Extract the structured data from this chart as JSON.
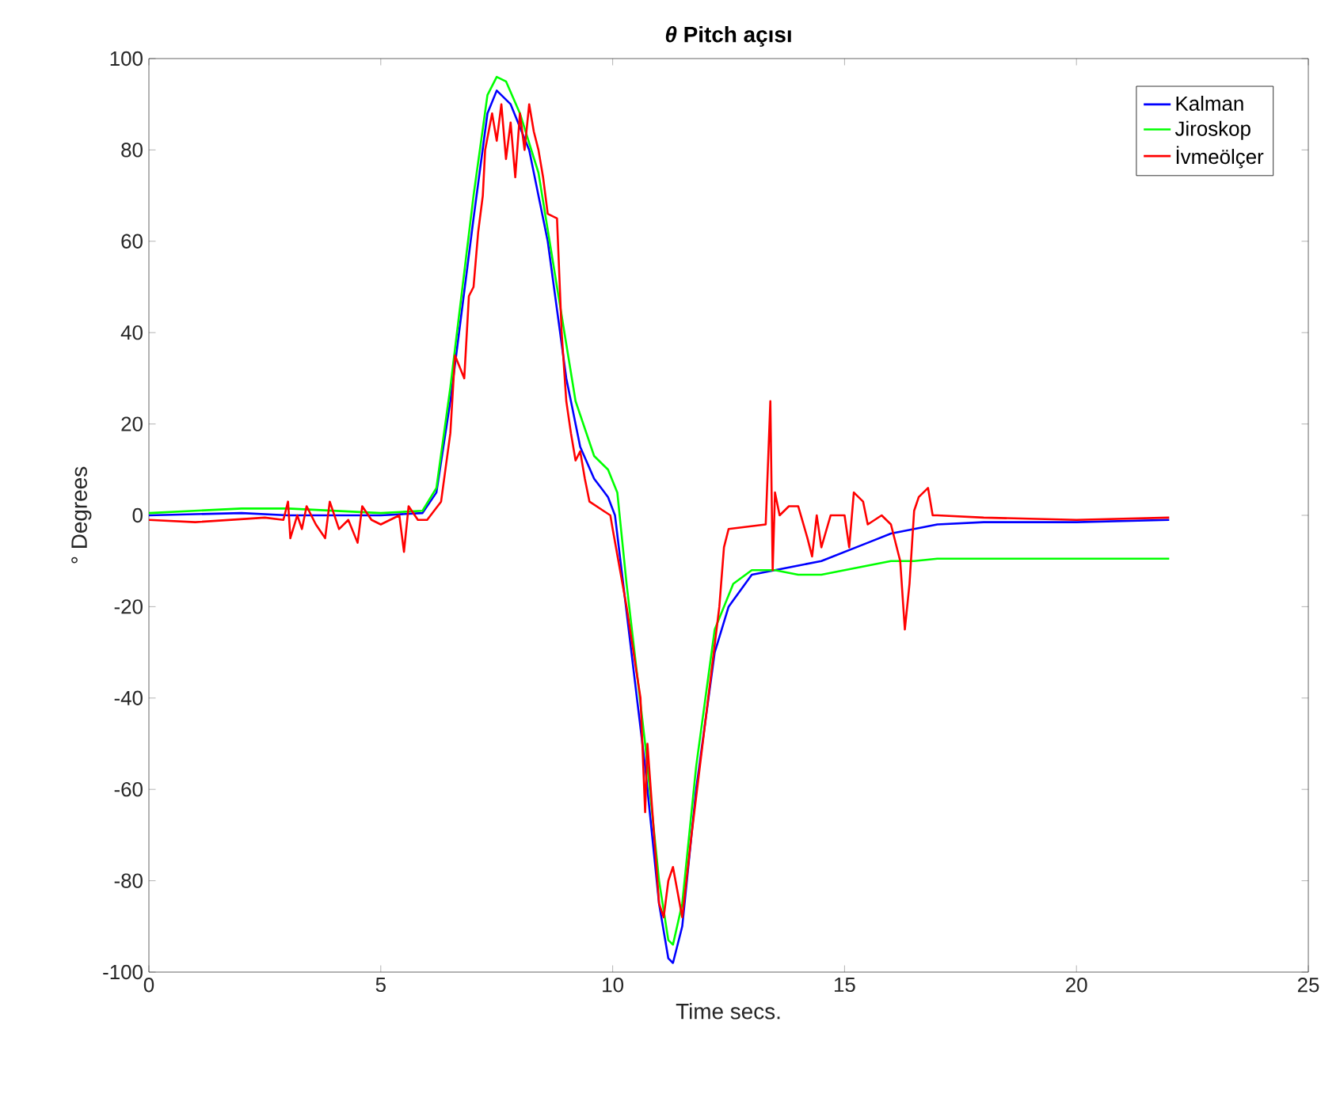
{
  "chart_data": {
    "type": "line",
    "title": "*θ* Pitch açısı",
    "xlabel": "Time secs.",
    "ylabel": "° Degrees",
    "xlim": [
      0,
      25
    ],
    "ylim": [
      -100,
      100
    ],
    "xticks": [
      0,
      5,
      10,
      15,
      20,
      25
    ],
    "yticks": [
      -100,
      -80,
      -60,
      -40,
      -20,
      0,
      20,
      40,
      60,
      80,
      100
    ],
    "grid": false,
    "legend": "top right",
    "marker": "none",
    "line_style": "solid",
    "series": [
      {
        "name": "Kalman",
        "color": "#0000ff",
        "x": [
          0,
          2,
          3,
          5,
          5.9,
          6.2,
          6.5,
          7,
          7.3,
          7.5,
          7.8,
          8.2,
          8.6,
          9,
          9.3,
          9.6,
          9.9,
          10.05,
          10.3,
          10.7,
          11,
          11.2,
          11.3,
          11.5,
          11.8,
          12.2,
          12.5,
          13,
          13.5,
          14,
          14.5,
          15,
          15.5,
          16,
          16.5,
          17,
          18,
          20,
          22
        ],
        "values": [
          0,
          0.5,
          0,
          0,
          0.5,
          5,
          25,
          65,
          88,
          93,
          90,
          80,
          60,
          30,
          15,
          8,
          4,
          0,
          null,
          -55,
          -85,
          -97,
          -98,
          -90,
          -60,
          -30,
          -20,
          -13,
          -12,
          -11,
          -10,
          -8,
          -6,
          -4,
          -3,
          -2,
          -1.5,
          -1.5,
          -1
        ]
      },
      {
        "name": "Jiroskop",
        "color": "#00ff00",
        "x": [
          0,
          2,
          3,
          5,
          5.9,
          6.2,
          6.5,
          7,
          7.3,
          7.5,
          7.7,
          8,
          8.4,
          8.8,
          9.2,
          9.6,
          9.9,
          10.1,
          10.3,
          10.7,
          11,
          11.2,
          11.3,
          11.5,
          11.8,
          12.2,
          12.6,
          13,
          13.5,
          14,
          14.5,
          15,
          15.5,
          16,
          16.5,
          17,
          22
        ],
        "values": [
          0.5,
          1.5,
          1.5,
          0.5,
          1,
          6,
          28,
          70,
          92,
          96,
          95,
          88,
          75,
          50,
          25,
          13,
          10,
          5,
          -15,
          -50,
          -80,
          -93,
          -94,
          -85,
          -55,
          -25,
          -15,
          -12,
          -12,
          -13,
          -13,
          -12,
          -11,
          -10,
          -10,
          -9.5,
          -9.5
        ]
      },
      {
        "name": "İvmeölçer",
        "color": "#ff0000",
        "x": [
          0,
          1,
          2.5,
          2.9,
          3,
          3.05,
          3.2,
          3.3,
          3.4,
          3.6,
          3.8,
          3.9,
          4.1,
          4.3,
          4.5,
          4.6,
          4.8,
          5,
          5.4,
          5.5,
          5.6,
          5.8,
          6,
          6.3,
          6.5,
          6.6,
          6.8,
          6.9,
          7,
          7.1,
          7.2,
          7.25,
          7.4,
          7.5,
          7.6,
          7.7,
          7.8,
          7.9,
          8,
          8.1,
          8.2,
          8.3,
          8.4,
          8.5,
          8.6,
          8.8,
          8.9,
          9,
          9.1,
          9.2,
          9.3,
          9.4,
          9.5,
          9.8,
          9.95,
          10,
          10.3,
          10.6,
          10.7,
          10.75,
          11,
          11.1,
          11.2,
          11.3,
          11.5,
          11.7,
          12,
          12.3,
          12.4,
          12.5,
          13.3,
          13.4,
          13.45,
          13.5,
          13.6,
          13.8,
          14,
          14.2,
          14.3,
          14.4,
          14.5,
          14.7,
          15,
          15.1,
          15.2,
          15.4,
          15.5,
          15.8,
          16,
          16.2,
          16.3,
          16.4,
          16.5,
          16.6,
          16.8,
          16.9,
          17,
          18,
          20,
          22
        ],
        "values": [
          -1,
          -1.5,
          -0.5,
          -1,
          3,
          -5,
          0,
          -3,
          2,
          -2,
          -5,
          3,
          -3,
          -1,
          -6,
          2,
          -1,
          -2,
          0,
          -8,
          2,
          -1,
          -1,
          3,
          18,
          35,
          30,
          48,
          50,
          62,
          70,
          80,
          88,
          82,
          90,
          78,
          86,
          74,
          88,
          80,
          90,
          84,
          80,
          74,
          66,
          65,
          40,
          25,
          18,
          12,
          14,
          8,
          3,
          1,
          0,
          -3,
          -20,
          -40,
          -65,
          -50,
          -85,
          -88,
          -80,
          -77,
          -88,
          -70,
          -45,
          -20,
          -7,
          -3,
          -2,
          25,
          -12,
          5,
          0,
          2,
          2,
          -5,
          -9,
          0,
          -7,
          0,
          0,
          -7,
          5,
          3,
          -2,
          0,
          -2,
          -10,
          -25,
          -15,
          1,
          4,
          6,
          0,
          0,
          -0.5,
          -1,
          -0.5
        ]
      }
    ]
  }
}
